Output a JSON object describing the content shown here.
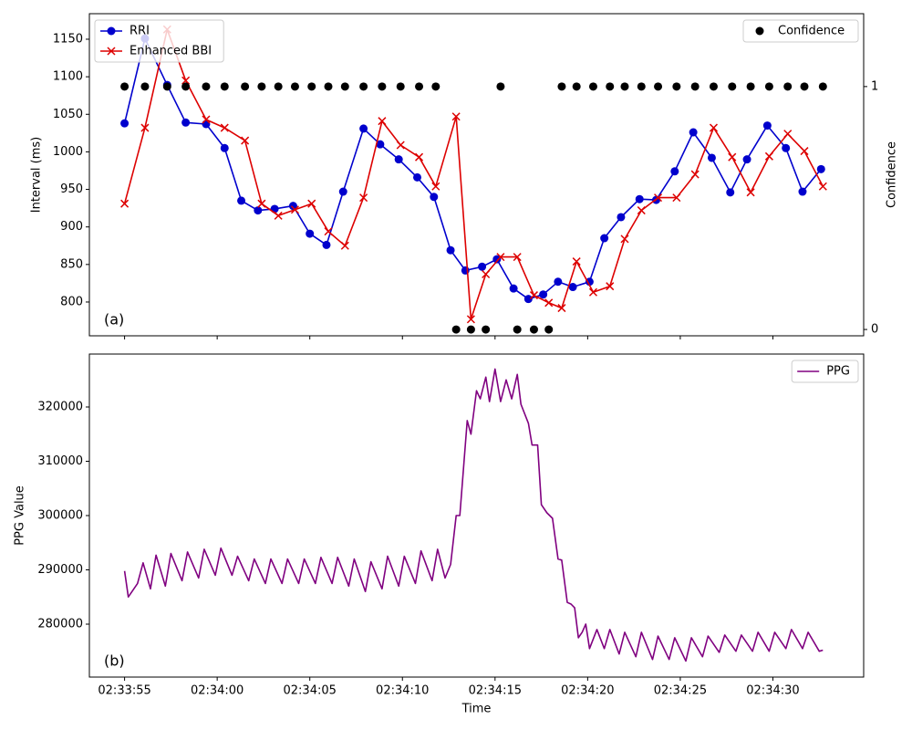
{
  "chart_data": [
    {
      "type": "line",
      "annotation": "(a)",
      "ylabel": "Interval (ms)",
      "y2label": "Confidence",
      "xlim": [
        "02:33:53.1",
        "02:34:34.9"
      ],
      "xticks": [
        "02:33:55",
        "02:34:00",
        "02:34:05",
        "02:34:10",
        "02:34:15",
        "02:34:20",
        "02:34:25",
        "02:34:30"
      ],
      "xtick_labels": false,
      "ylim": [
        755,
        1184
      ],
      "yticks": [
        800,
        850,
        900,
        950,
        1000,
        1050,
        1100,
        1150
      ],
      "y2lim": [
        -0.026,
        1.3
      ],
      "y2ticks": [
        0,
        1
      ],
      "series": [
        {
          "name": "RRI",
          "color": "#0000cd",
          "style": "line",
          "marker": "o",
          "legend": "upper left",
          "x": [
            "02:33:55.0",
            "02:33:56.1",
            "02:33:57.3",
            "02:33:58.3",
            "02:33:59.4",
            "02:34:00.4",
            "02:34:01.3",
            "02:34:02.2",
            "02:34:03.1",
            "02:34:04.1",
            "02:34:05.0",
            "02:34:05.9",
            "02:34:06.8",
            "02:34:07.9",
            "02:34:08.8",
            "02:34:09.8",
            "02:34:10.8",
            "02:34:11.7",
            "02:34:12.6",
            "02:34:13.4",
            "02:34:14.3",
            "02:34:15.1",
            "02:34:16.0",
            "02:34:16.8",
            "02:34:17.6",
            "02:34:18.4",
            "02:34:19.2",
            "02:34:20.1",
            "02:34:20.9",
            "02:34:21.8",
            "02:34:22.8",
            "02:34:23.7",
            "02:34:24.7",
            "02:34:25.7",
            "02:34:26.7",
            "02:34:27.7",
            "02:34:28.6",
            "02:34:29.7",
            "02:34:30.7",
            "02:34:31.6",
            "02:34:32.6"
          ],
          "values": [
            1038,
            1151,
            1089,
            1039,
            1037,
            1005,
            935,
            922,
            924,
            928,
            891,
            876,
            947,
            1031,
            1010,
            990,
            966,
            940,
            869,
            842,
            847,
            857,
            818,
            804,
            810,
            827,
            820,
            827,
            885,
            913,
            937,
            936,
            974,
            1026,
            992,
            946,
            990,
            1035,
            1005,
            947,
            977
          ]
        },
        {
          "name": "Enhanced BBI",
          "color": "#dd0000",
          "style": "line",
          "marker": "x",
          "legend": "upper left",
          "x": [
            "02:33:55.0",
            "02:33:56.1",
            "02:33:57.3",
            "02:33:58.3",
            "02:33:59.4",
            "02:34:00.4",
            "02:34:01.5",
            "02:34:02.4",
            "02:34:03.3",
            "02:34:04.2",
            "02:34:05.1",
            "02:34:06.0",
            "02:34:06.9",
            "02:34:07.9",
            "02:34:08.9",
            "02:34:09.9",
            "02:34:10.9",
            "02:34:11.8",
            "02:34:12.9",
            "02:34:13.7",
            "02:34:14.5",
            "02:34:15.3",
            "02:34:16.2",
            "02:34:17.1",
            "02:34:17.9",
            "02:34:18.6",
            "02:34:19.4",
            "02:34:20.3",
            "02:34:21.2",
            "02:34:22.0",
            "02:34:22.9",
            "02:34:23.8",
            "02:34:24.8",
            "02:34:25.8",
            "02:34:26.8",
            "02:34:27.8",
            "02:34:28.8",
            "02:34:29.8",
            "02:34:30.8",
            "02:34:31.7",
            "02:34:32.7"
          ],
          "values": [
            931,
            1032,
            1163,
            1095,
            1043,
            1032,
            1015,
            931,
            915,
            923,
            931,
            894,
            875,
            939,
            1041,
            1009,
            993,
            954,
            1047,
            777,
            837,
            860,
            860,
            809,
            799,
            792,
            854,
            813,
            821,
            884,
            922,
            939,
            939,
            970,
            1032,
            993,
            946,
            994,
            1024,
            1001,
            954
          ]
        },
        {
          "name": "Confidence",
          "color": "#000000",
          "style": "scatter",
          "marker": "o",
          "legend": "upper right",
          "axis": "y2",
          "x": [
            "02:33:55.0",
            "02:33:56.1",
            "02:33:57.3",
            "02:33:58.3",
            "02:33:59.4",
            "02:34:00.4",
            "02:34:01.5",
            "02:34:02.4",
            "02:34:03.3",
            "02:34:04.2",
            "02:34:05.1",
            "02:34:06.0",
            "02:34:06.9",
            "02:34:07.9",
            "02:34:08.9",
            "02:34:09.9",
            "02:34:10.9",
            "02:34:11.8",
            "02:34:12.9",
            "02:34:13.7",
            "02:34:14.5",
            "02:34:15.3",
            "02:34:16.2",
            "02:34:17.1",
            "02:34:17.9",
            "02:34:18.6",
            "02:34:19.4",
            "02:34:20.3",
            "02:34:21.2",
            "02:34:22.0",
            "02:34:22.9",
            "02:34:23.8",
            "02:34:24.8",
            "02:34:25.8",
            "02:34:26.8",
            "02:34:27.8",
            "02:34:28.8",
            "02:34:29.8",
            "02:34:30.8",
            "02:34:31.7",
            "02:34:32.7"
          ],
          "values": [
            1,
            1,
            1,
            1,
            1,
            1,
            1,
            1,
            1,
            1,
            1,
            1,
            1,
            1,
            1,
            1,
            1,
            1,
            0,
            0,
            0,
            1,
            0,
            0,
            0,
            1,
            1,
            1,
            1,
            1,
            1,
            1,
            1,
            1,
            1,
            1,
            1,
            1,
            1,
            1,
            1
          ]
        }
      ]
    },
    {
      "type": "line",
      "annotation": "(b)",
      "ylabel": "PPG Value",
      "xlabel": "Time",
      "xlim": [
        "02:33:53.1",
        "02:34:34.9"
      ],
      "xticks": [
        "02:33:55",
        "02:34:00",
        "02:34:05",
        "02:34:10",
        "02:34:15",
        "02:34:20",
        "02:34:25",
        "02:34:30"
      ],
      "xtick_labels": true,
      "ylim": [
        270250,
        329750
      ],
      "yticks": [
        280000,
        290000,
        300000,
        310000,
        320000
      ],
      "series": [
        {
          "name": "PPG",
          "color": "#800080",
          "style": "line",
          "legend": "upper right",
          "x": [
            "02:33:55.0",
            "02:33:55.2",
            "02:33:55.7",
            "02:33:56.0",
            "02:33:56.4",
            "02:33:56.7",
            "02:33:57.2",
            "02:33:57.5",
            "02:33:58.1",
            "02:33:58.4",
            "02:33:59.0",
            "02:33:59.3",
            "02:33:59.9",
            "02:34:00.2",
            "02:34:00.8",
            "02:34:01.1",
            "02:34:01.7",
            "02:34:02.0",
            "02:34:02.6",
            "02:34:02.9",
            "02:34:03.5",
            "02:34:03.8",
            "02:34:04.4",
            "02:34:04.7",
            "02:34:05.3",
            "02:34:05.6",
            "02:34:06.2",
            "02:34:06.5",
            "02:34:07.1",
            "02:34:07.4",
            "02:34:08.0",
            "02:34:08.3",
            "02:34:08.9",
            "02:34:09.2",
            "02:34:09.8",
            "02:34:10.1",
            "02:34:10.7",
            "02:34:11.0",
            "02:34:11.6",
            "02:34:11.9",
            "02:34:12.3",
            "02:34:12.6",
            "02:34:12.9",
            "02:34:13.1",
            "02:34:13.5",
            "02:34:13.7",
            "02:34:14.0",
            "02:34:14.2",
            "02:34:14.5",
            "02:34:14.7",
            "02:34:15.0",
            "02:34:15.3",
            "02:34:15.6",
            "02:34:15.9",
            "02:34:16.2",
            "02:34:16.4",
            "02:34:16.8",
            "02:34:17.0",
            "02:34:17.3",
            "02:34:17.5",
            "02:34:17.8",
            "02:34:18.1",
            "02:34:18.4",
            "02:34:18.6",
            "02:34:18.9",
            "02:34:19.1",
            "02:34:19.3",
            "02:34:19.5",
            "02:34:19.7",
            "02:34:19.9",
            "02:34:20.1",
            "02:34:20.5",
            "02:34:20.9",
            "02:34:21.2",
            "02:34:21.7",
            "02:34:22.0",
            "02:34:22.6",
            "02:34:22.9",
            "02:34:23.5",
            "02:34:23.8",
            "02:34:24.4",
            "02:34:24.7",
            "02:34:25.3",
            "02:34:25.6",
            "02:34:26.2",
            "02:34:26.5",
            "02:34:27.1",
            "02:34:27.4",
            "02:34:28.0",
            "02:34:28.3",
            "02:34:28.9",
            "02:34:29.2",
            "02:34:29.8",
            "02:34:30.1",
            "02:34:30.7",
            "02:34:31.0",
            "02:34:31.6",
            "02:34:31.9",
            "02:34:32.5",
            "02:34:32.7"
          ],
          "values": [
            289800,
            285000,
            287500,
            291300,
            286500,
            292700,
            287000,
            293000,
            288000,
            293300,
            288500,
            293800,
            289000,
            294000,
            289000,
            292500,
            288000,
            292000,
            287500,
            292000,
            287500,
            292000,
            287500,
            292000,
            287500,
            292300,
            287500,
            292300,
            287000,
            292000,
            286000,
            291500,
            286500,
            292500,
            287000,
            292500,
            287500,
            293500,
            288000,
            293800,
            288500,
            291000,
            300000,
            300000,
            317500,
            315000,
            323000,
            321500,
            325500,
            321000,
            327000,
            321000,
            325000,
            321500,
            326000,
            320500,
            317000,
            313000,
            313000,
            302000,
            300500,
            299500,
            292000,
            291800,
            284000,
            283700,
            283000,
            277500,
            278500,
            280000,
            275500,
            279000,
            275500,
            279000,
            274500,
            278500,
            274000,
            278500,
            273500,
            277800,
            273500,
            277500,
            273200,
            277500,
            274000,
            277800,
            274800,
            278000,
            275000,
            278000,
            275000,
            278500,
            275000,
            278500,
            275500,
            279000,
            275500,
            278500,
            275000,
            275200
          ]
        }
      ]
    }
  ]
}
